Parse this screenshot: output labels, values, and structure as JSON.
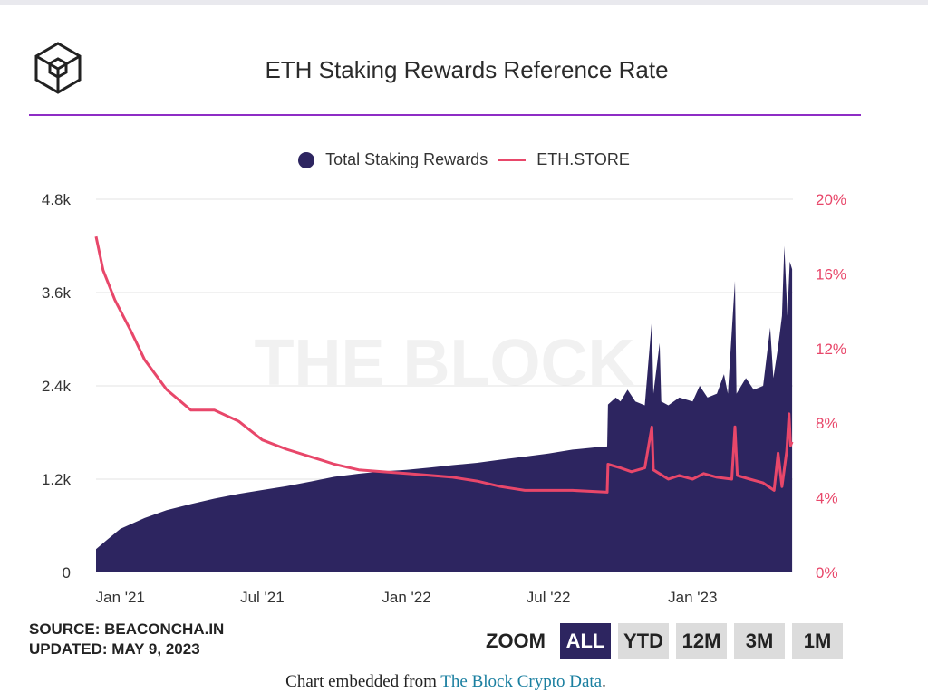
{
  "title": "ETH Staking Rewards Reference Rate",
  "watermark": "THE BLOCK",
  "legend": {
    "items": [
      {
        "label": "Total Staking Rewards",
        "color": "#2d2560"
      },
      {
        "label": "ETH.STORE",
        "color": "#e8476a"
      }
    ]
  },
  "source": {
    "line1": "SOURCE: BEACONCHA.IN",
    "line2": "UPDATED: MAY 9, 2023"
  },
  "zoom": {
    "label": "ZOOM",
    "buttons": [
      "ALL",
      "YTD",
      "12M",
      "3M",
      "1M"
    ],
    "active": "ALL"
  },
  "embed": {
    "prefix": "Chart embedded from ",
    "link": "The Block Crypto Data",
    "suffix": "."
  },
  "colors": {
    "bar": "#2d2560",
    "line": "#e8476a",
    "accent_rule": "#8e2dc5",
    "grid": "#e3e3e3"
  },
  "chart_data": {
    "type": "area",
    "x_ticks": [
      "Jan '21",
      "Jul '21",
      "Jan '22",
      "Jul '22",
      "Jan '23"
    ],
    "y_left_ticks": [
      "0",
      "1.2k",
      "2.4k",
      "3.6k",
      "4.8k"
    ],
    "y_right_ticks": [
      "0%",
      "4%",
      "8%",
      "12%",
      "16%",
      "20%"
    ],
    "ylim_left": [
      0,
      4800
    ],
    "ylim_right": [
      0,
      20
    ],
    "grid": true,
    "legend_position": "top-center",
    "series": [
      {
        "name": "Total Staking Rewards",
        "type": "area",
        "axis": "left",
        "points": [
          [
            "2020-12-01",
            300
          ],
          [
            "2020-12-15",
            420
          ],
          [
            "2021-01-01",
            560
          ],
          [
            "2021-02-01",
            700
          ],
          [
            "2021-03-01",
            800
          ],
          [
            "2021-04-01",
            880
          ],
          [
            "2021-05-01",
            950
          ],
          [
            "2021-06-01",
            1010
          ],
          [
            "2021-07-01",
            1060
          ],
          [
            "2021-08-01",
            1110
          ],
          [
            "2021-09-01",
            1170
          ],
          [
            "2021-10-01",
            1230
          ],
          [
            "2021-11-01",
            1270
          ],
          [
            "2021-12-01",
            1300
          ],
          [
            "2022-01-01",
            1320
          ],
          [
            "2022-02-01",
            1350
          ],
          [
            "2022-03-01",
            1380
          ],
          [
            "2022-04-01",
            1410
          ],
          [
            "2022-05-01",
            1450
          ],
          [
            "2022-06-01",
            1490
          ],
          [
            "2022-07-01",
            1530
          ],
          [
            "2022-08-01",
            1580
          ],
          [
            "2022-09-01",
            1610
          ],
          [
            "2022-09-14",
            1620
          ],
          [
            "2022-09-15",
            2160
          ],
          [
            "2022-09-25",
            2250
          ],
          [
            "2022-10-01",
            2200
          ],
          [
            "2022-10-10",
            2350
          ],
          [
            "2022-10-20",
            2200
          ],
          [
            "2022-11-01",
            2150
          ],
          [
            "2022-11-10",
            3240
          ],
          [
            "2022-11-12",
            2300
          ],
          [
            "2022-11-20",
            2950
          ],
          [
            "2022-11-22",
            2200
          ],
          [
            "2022-12-01",
            2150
          ],
          [
            "2022-12-15",
            2250
          ],
          [
            "2023-01-01",
            2200
          ],
          [
            "2023-01-10",
            2400
          ],
          [
            "2023-01-20",
            2250
          ],
          [
            "2023-02-01",
            2300
          ],
          [
            "2023-02-10",
            2550
          ],
          [
            "2023-02-15",
            2300
          ],
          [
            "2023-02-24",
            3750
          ],
          [
            "2023-02-26",
            2300
          ],
          [
            "2023-03-10",
            2500
          ],
          [
            "2023-03-20",
            2350
          ],
          [
            "2023-04-01",
            2400
          ],
          [
            "2023-04-10",
            3150
          ],
          [
            "2023-04-14",
            2500
          ],
          [
            "2023-04-20",
            2900
          ],
          [
            "2023-04-25",
            3300
          ],
          [
            "2023-04-28",
            4200
          ],
          [
            "2023-05-02",
            3300
          ],
          [
            "2023-05-05",
            4000
          ],
          [
            "2023-05-08",
            3900
          ]
        ]
      },
      {
        "name": "ETH.STORE",
        "type": "line",
        "axis": "right",
        "points": [
          [
            "2020-12-01",
            18.0
          ],
          [
            "2020-12-10",
            16.2
          ],
          [
            "2020-12-25",
            14.6
          ],
          [
            "2021-01-15",
            12.9
          ],
          [
            "2021-02-01",
            11.4
          ],
          [
            "2021-03-01",
            9.8
          ],
          [
            "2021-04-01",
            8.7
          ],
          [
            "2021-05-01",
            8.7
          ],
          [
            "2021-06-01",
            8.1
          ],
          [
            "2021-07-01",
            7.1
          ],
          [
            "2021-08-01",
            6.6
          ],
          [
            "2021-09-01",
            6.2
          ],
          [
            "2021-10-01",
            5.8
          ],
          [
            "2021-11-01",
            5.5
          ],
          [
            "2021-12-01",
            5.4
          ],
          [
            "2022-01-01",
            5.3
          ],
          [
            "2022-02-01",
            5.2
          ],
          [
            "2022-03-01",
            5.1
          ],
          [
            "2022-04-01",
            4.9
          ],
          [
            "2022-05-01",
            4.6
          ],
          [
            "2022-06-01",
            4.4
          ],
          [
            "2022-07-01",
            4.4
          ],
          [
            "2022-08-01",
            4.4
          ],
          [
            "2022-09-14",
            4.3
          ],
          [
            "2022-09-15",
            5.8
          ],
          [
            "2022-10-01",
            5.6
          ],
          [
            "2022-10-15",
            5.4
          ],
          [
            "2022-11-01",
            5.6
          ],
          [
            "2022-11-10",
            7.8
          ],
          [
            "2022-11-12",
            5.5
          ],
          [
            "2022-12-01",
            5.0
          ],
          [
            "2022-12-15",
            5.2
          ],
          [
            "2023-01-01",
            5.0
          ],
          [
            "2023-01-15",
            5.3
          ],
          [
            "2023-02-01",
            5.1
          ],
          [
            "2023-02-20",
            5.0
          ],
          [
            "2023-02-24",
            7.8
          ],
          [
            "2023-02-27",
            5.2
          ],
          [
            "2023-03-15",
            5.0
          ],
          [
            "2023-04-01",
            4.8
          ],
          [
            "2023-04-15",
            4.4
          ],
          [
            "2023-04-20",
            6.4
          ],
          [
            "2023-04-25",
            4.6
          ],
          [
            "2023-05-01",
            6.5
          ],
          [
            "2023-05-04",
            8.5
          ],
          [
            "2023-05-06",
            6.8
          ],
          [
            "2023-05-08",
            7.0
          ]
        ]
      }
    ]
  }
}
